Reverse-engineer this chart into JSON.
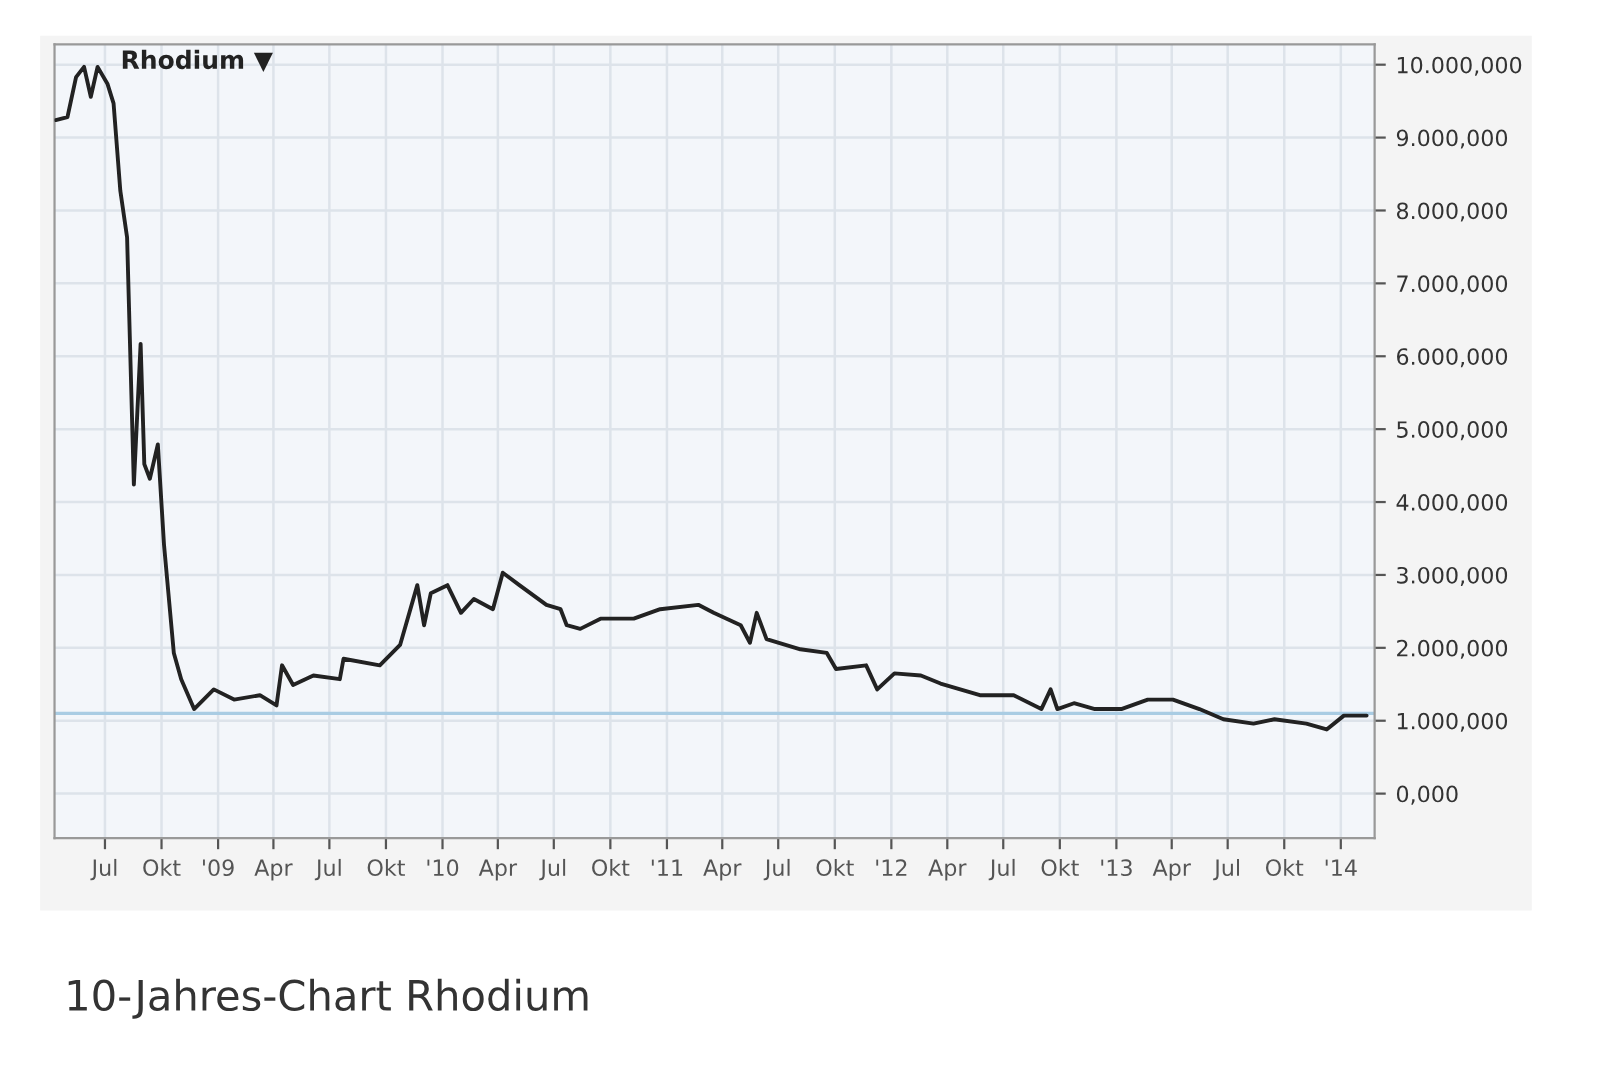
{
  "chart_data": {
    "type": "line",
    "title": "Rhodium ▼",
    "annotations": [
      "10-Jahres-Chart Rhodium"
    ],
    "x": [
      "2008-04-12",
      "2008-05-01",
      "2008-05-15",
      "2008-05-28",
      "2008-06-08",
      "2008-06-19",
      "2008-07-05",
      "2008-07-15",
      "2008-07-26",
      "2008-08-06",
      "2008-08-17",
      "2008-08-28",
      "2008-09-03",
      "2008-09-12",
      "2008-09-25",
      "2008-10-05",
      "2008-10-21",
      "2008-11-02",
      "2008-11-23",
      "2008-12-25",
      "2009-01-27",
      "2009-03-10",
      "2009-04-06",
      "2009-04-15",
      "2009-05-03",
      "2009-06-05",
      "2009-07-18",
      "2009-07-24",
      "2009-09-21",
      "2009-10-24",
      "2009-11-21",
      "2009-12-02",
      "2009-12-13",
      "2010-01-09",
      "2010-01-31",
      "2010-02-21",
      "2010-03-24",
      "2010-04-09",
      "2010-05-06",
      "2010-06-19",
      "2010-07-12",
      "2010-07-22",
      "2010-08-13",
      "2010-09-15",
      "2010-11-08",
      "2010-12-21",
      "2011-02-21",
      "2011-03-18",
      "2011-05-01",
      "2011-05-16",
      "2011-05-27",
      "2011-06-12",
      "2011-08-06",
      "2011-09-18",
      "2011-10-03",
      "2011-11-21",
      "2011-12-09",
      "2012-01-06",
      "2012-02-18",
      "2012-03-21",
      "2012-05-24",
      "2012-07-18",
      "2012-09-01",
      "2012-09-16",
      "2012-09-27",
      "2012-10-24",
      "2012-11-27",
      "2013-01-09",
      "2013-02-21",
      "2013-04-03",
      "2013-05-16",
      "2013-06-24",
      "2013-08-12",
      "2013-09-15",
      "2013-11-06",
      "2013-12-09",
      "2014-01-06",
      "2014-02-12"
    ],
    "series": [
      {
        "color": "#222222",
        "values": [
          9240,
          9280,
          9830,
          9970,
          9560,
          9970,
          9740,
          9470,
          8270,
          7630,
          4240,
          6170,
          4520,
          4320,
          4790,
          3420,
          1930,
          1570,
          1160,
          1430,
          1290,
          1350,
          1210,
          1760,
          1490,
          1620,
          1570,
          1850,
          1760,
          2040,
          2860,
          2310,
          2750,
          2860,
          2480,
          2670,
          2530,
          3030,
          2860,
          2590,
          2530,
          2310,
          2260,
          2400,
          2400,
          2530,
          2590,
          2480,
          2310,
          2070,
          2480,
          2120,
          1980,
          1930,
          1710,
          1760,
          1430,
          1650,
          1620,
          1510,
          1350,
          1350,
          1160,
          1430,
          1160,
          1240,
          1160,
          1160,
          1290,
          1290,
          1160,
          1020,
          960,
          1020,
          960,
          880,
          1070,
          1070
        ]
      }
    ],
    "xlim": [
      "2008-04-10",
      "2014-02-25"
    ],
    "xticks": [
      {
        "value": "2008-07-01",
        "label": "Jul"
      },
      {
        "value": "2008-10-01",
        "label": "Okt"
      },
      {
        "value": "2009-01-01",
        "label": "'09"
      },
      {
        "value": "2009-04-01",
        "label": "Apr"
      },
      {
        "value": "2009-07-01",
        "label": "Jul"
      },
      {
        "value": "2009-10-01",
        "label": "Okt"
      },
      {
        "value": "2010-01-01",
        "label": "'10"
      },
      {
        "value": "2010-04-01",
        "label": "Apr"
      },
      {
        "value": "2010-07-01",
        "label": "Jul"
      },
      {
        "value": "2010-10-01",
        "label": "Okt"
      },
      {
        "value": "2011-01-01",
        "label": "'11"
      },
      {
        "value": "2011-04-01",
        "label": "Apr"
      },
      {
        "value": "2011-07-01",
        "label": "Jul"
      },
      {
        "value": "2011-10-01",
        "label": "Okt"
      },
      {
        "value": "2012-01-01",
        "label": "'12"
      },
      {
        "value": "2012-04-01",
        "label": "Apr"
      },
      {
        "value": "2012-07-01",
        "label": "Jul"
      },
      {
        "value": "2012-10-01",
        "label": "Okt"
      },
      {
        "value": "2013-01-01",
        "label": "'13"
      },
      {
        "value": "2013-04-01",
        "label": "Apr"
      },
      {
        "value": "2013-07-01",
        "label": "Jul"
      },
      {
        "value": "2013-10-01",
        "label": "Okt"
      },
      {
        "value": "2014-01-01",
        "label": "'14"
      }
    ],
    "ylim": [
      -610,
      10280
    ],
    "yticks": [
      {
        "value": 0,
        "label": "0,000"
      },
      {
        "value": 1000,
        "label": "1.000,000"
      },
      {
        "value": 2000,
        "label": "2.000,000"
      },
      {
        "value": 3000,
        "label": "3.000,000"
      },
      {
        "value": 4000,
        "label": "4.000,000"
      },
      {
        "value": 5000,
        "label": "5.000,000"
      },
      {
        "value": 6000,
        "label": "6.000,000"
      },
      {
        "value": 7000,
        "label": "7.000,000"
      },
      {
        "value": 8000,
        "label": "8.000,000"
      },
      {
        "value": 9000,
        "label": "9.000,000"
      },
      {
        "value": 10000,
        "label": "10.000,000"
      }
    ],
    "ref_lines": [
      {
        "axis": "y",
        "value": 1100,
        "color": "#a9cce3"
      }
    ],
    "grid": true,
    "legend": false,
    "marker": "none",
    "line_style": "solid"
  }
}
